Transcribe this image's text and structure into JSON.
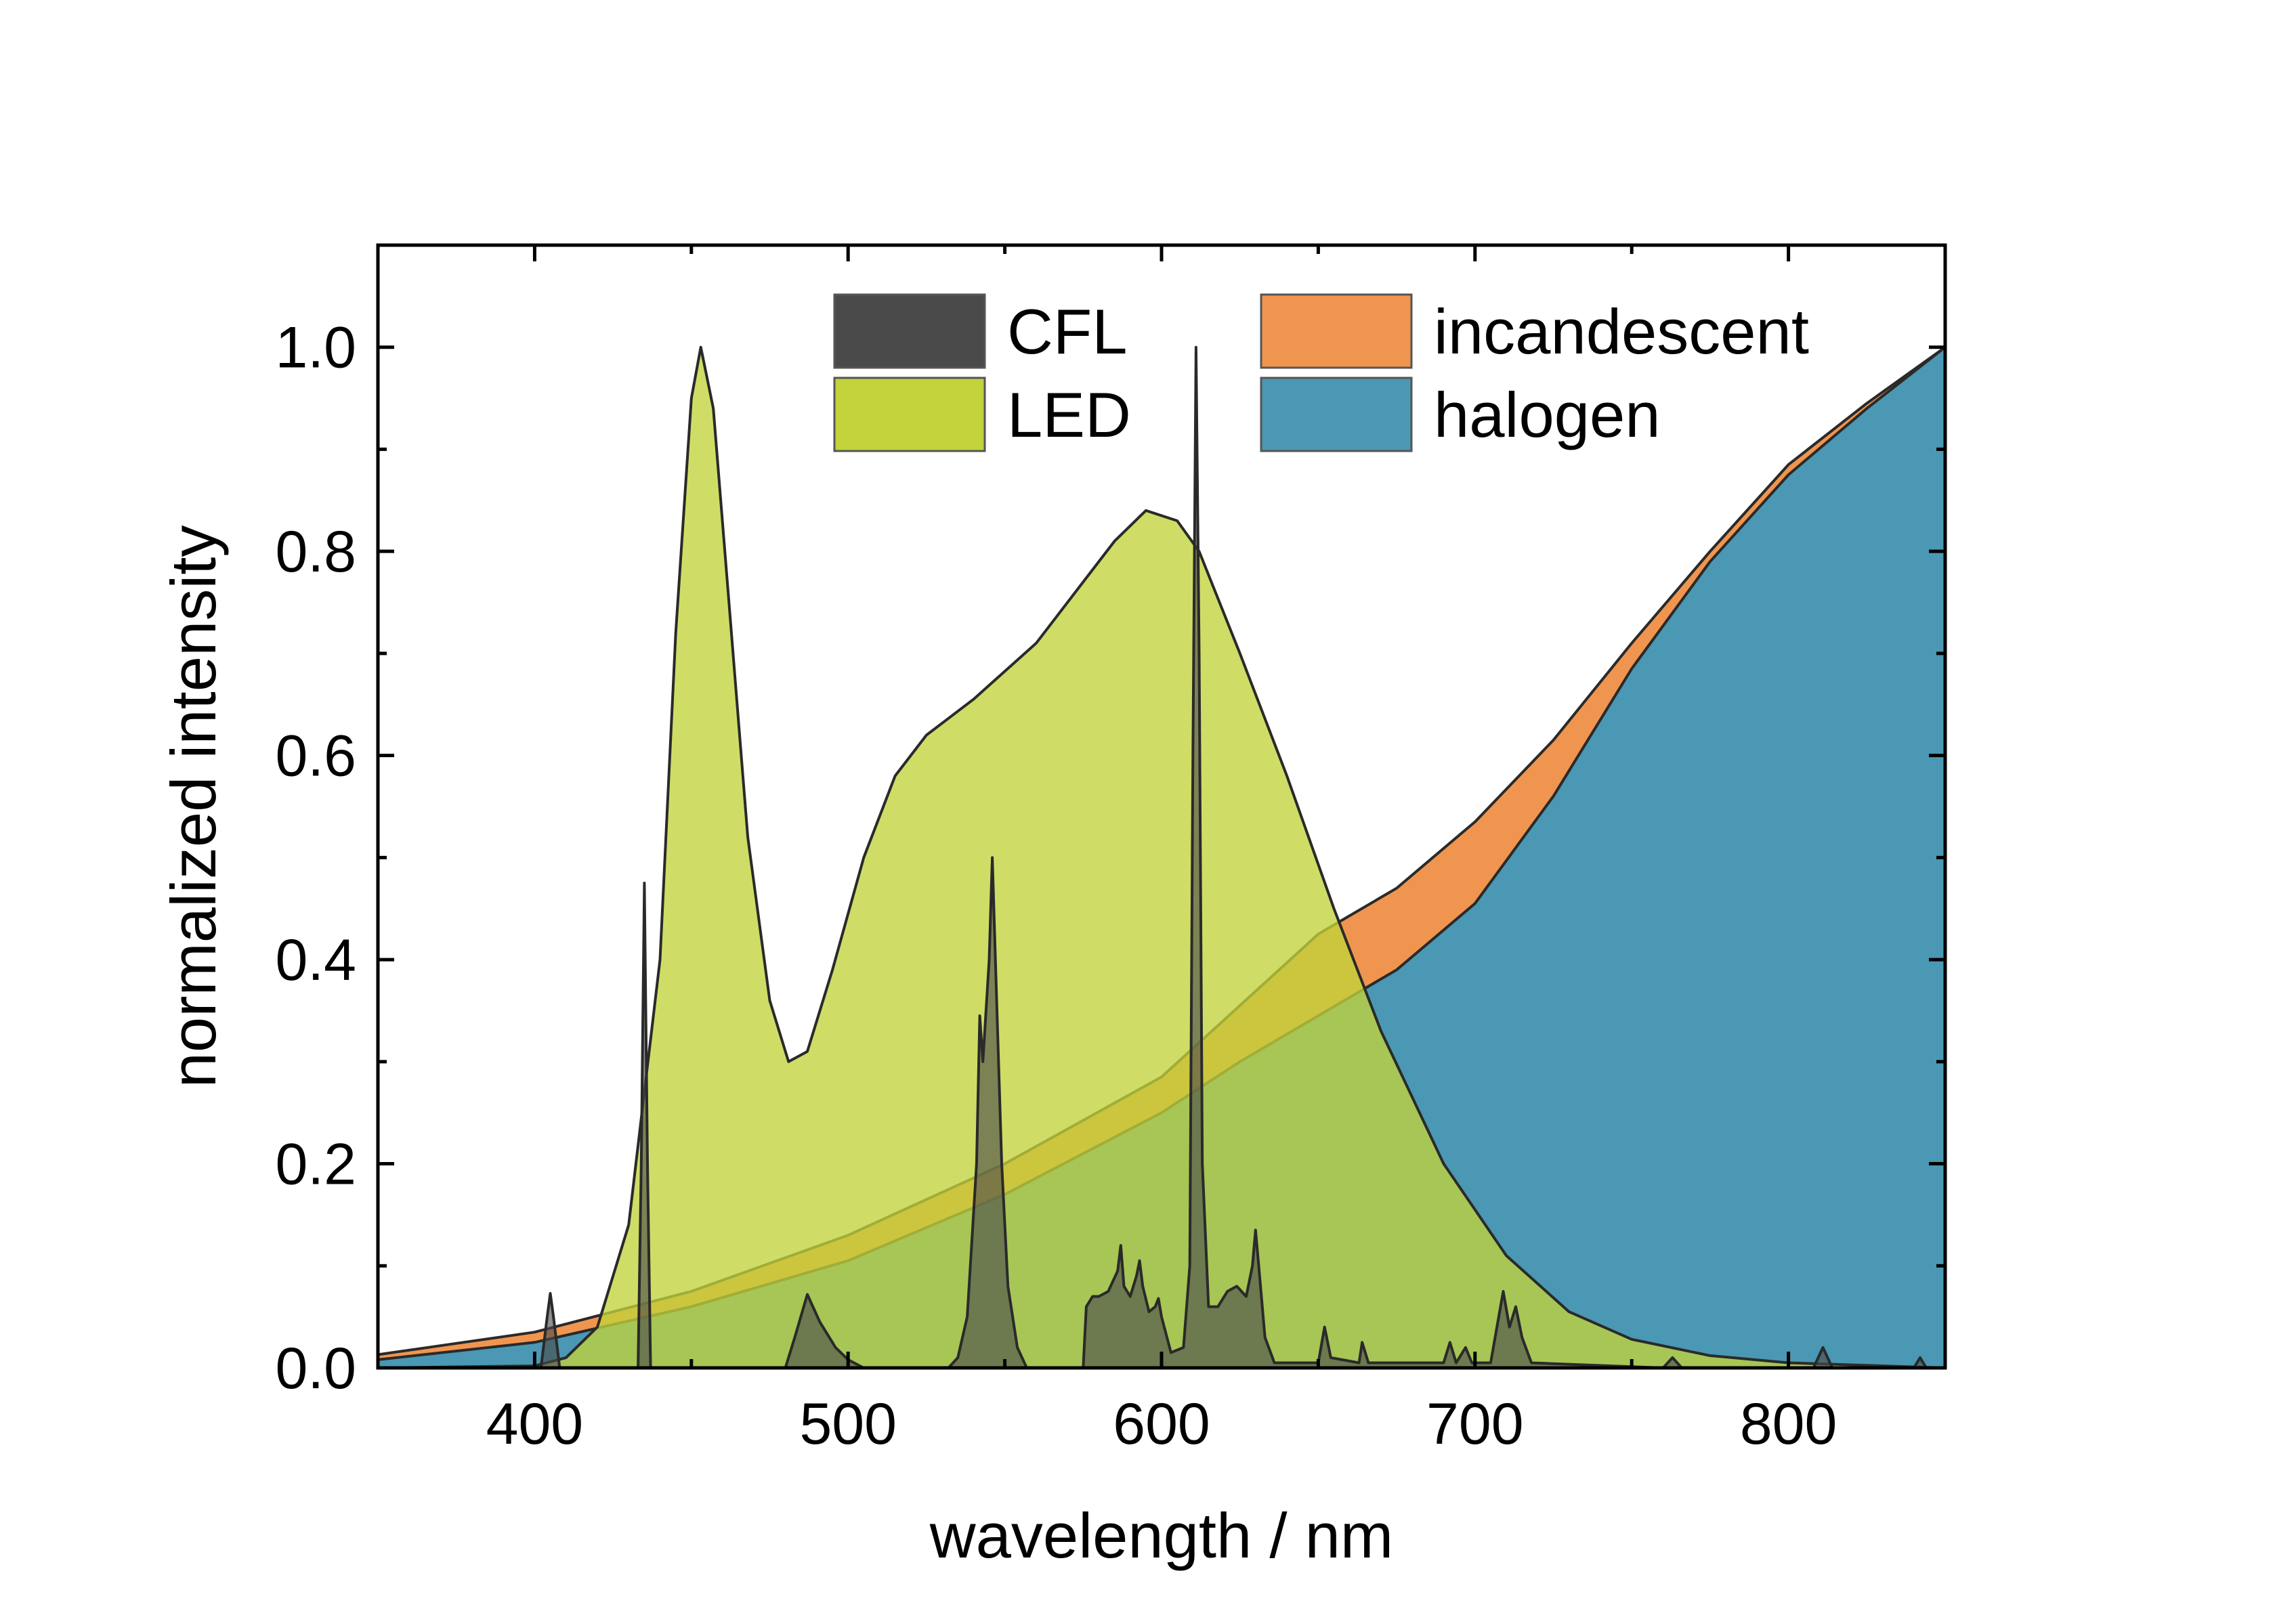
{
  "chart_data": {
    "type": "area",
    "xlabel": "wavelength / nm",
    "ylabel": "normalized intensity",
    "xlim": [
      350,
      850
    ],
    "ylim": [
      0,
      1.1
    ],
    "x_ticks": [
      400,
      500,
      600,
      700,
      800
    ],
    "x_tick_labels": [
      "400",
      "500",
      "600",
      "700",
      "800"
    ],
    "y_ticks": [
      0.0,
      0.2,
      0.4,
      0.6,
      0.8,
      1.0
    ],
    "y_tick_labels": [
      "0.0",
      "0.2",
      "0.4",
      "0.6",
      "0.8",
      "1.0"
    ],
    "grid": false,
    "legend_position": "top",
    "series": [
      {
        "name": "incandescent",
        "color": "#f0954f",
        "points": [
          [
            350,
            0.013
          ],
          [
            400,
            0.035
          ],
          [
            450,
            0.075
          ],
          [
            500,
            0.13
          ],
          [
            550,
            0.2
          ],
          [
            600,
            0.285
          ],
          [
            650,
            0.425
          ],
          [
            675,
            0.47
          ],
          [
            700,
            0.535
          ],
          [
            725,
            0.615
          ],
          [
            750,
            0.71
          ],
          [
            775,
            0.8
          ],
          [
            800,
            0.885
          ],
          [
            825,
            0.945
          ],
          [
            850,
            1.0
          ]
        ]
      },
      {
        "name": "halogen",
        "color": "#4a98b3",
        "points": [
          [
            350,
            0.008
          ],
          [
            400,
            0.025
          ],
          [
            450,
            0.06
          ],
          [
            500,
            0.105
          ],
          [
            550,
            0.17
          ],
          [
            600,
            0.25
          ],
          [
            625,
            0.3
          ],
          [
            650,
            0.345
          ],
          [
            675,
            0.39
          ],
          [
            700,
            0.455
          ],
          [
            725,
            0.56
          ],
          [
            750,
            0.685
          ],
          [
            775,
            0.79
          ],
          [
            800,
            0.875
          ],
          [
            825,
            0.94
          ],
          [
            850,
            1.0
          ]
        ]
      },
      {
        "name": "LED",
        "color": "#c2d33b",
        "points": [
          [
            350,
            0.0
          ],
          [
            400,
            0.002
          ],
          [
            410,
            0.01
          ],
          [
            420,
            0.04
          ],
          [
            430,
            0.14
          ],
          [
            440,
            0.4
          ],
          [
            445,
            0.72
          ],
          [
            450,
            0.95
          ],
          [
            453,
            1.0
          ],
          [
            457,
            0.94
          ],
          [
            462,
            0.75
          ],
          [
            468,
            0.52
          ],
          [
            475,
            0.36
          ],
          [
            481,
            0.3
          ],
          [
            487,
            0.31
          ],
          [
            495,
            0.39
          ],
          [
            505,
            0.5
          ],
          [
            515,
            0.58
          ],
          [
            525,
            0.62
          ],
          [
            540,
            0.655
          ],
          [
            560,
            0.71
          ],
          [
            575,
            0.77
          ],
          [
            585,
            0.81
          ],
          [
            595,
            0.84
          ],
          [
            605,
            0.83
          ],
          [
            612,
            0.8
          ],
          [
            625,
            0.7
          ],
          [
            640,
            0.58
          ],
          [
            655,
            0.45
          ],
          [
            670,
            0.33
          ],
          [
            690,
            0.2
          ],
          [
            710,
            0.11
          ],
          [
            730,
            0.055
          ],
          [
            750,
            0.028
          ],
          [
            775,
            0.012
          ],
          [
            800,
            0.005
          ],
          [
            850,
            0.0
          ]
        ]
      },
      {
        "name": "CFL",
        "color": "#4a4a4a",
        "points": [
          [
            350,
            0.0
          ],
          [
            402,
            0.0
          ],
          [
            404,
            0.05
          ],
          [
            405,
            0.073
          ],
          [
            406,
            0.05
          ],
          [
            408,
            0.0
          ],
          [
            433,
            0.0
          ],
          [
            434,
            0.2
          ],
          [
            435,
            0.475
          ],
          [
            436,
            0.2
          ],
          [
            437,
            0.0
          ],
          [
            480,
            0.0
          ],
          [
            483,
            0.03
          ],
          [
            487,
            0.072
          ],
          [
            491,
            0.045
          ],
          [
            496,
            0.02
          ],
          [
            500,
            0.008
          ],
          [
            505,
            0.0
          ],
          [
            532,
            0.0
          ],
          [
            535,
            0.01
          ],
          [
            538,
            0.05
          ],
          [
            541,
            0.2
          ],
          [
            542,
            0.345
          ],
          [
            543,
            0.3
          ],
          [
            545,
            0.4
          ],
          [
            546,
            0.5
          ],
          [
            547,
            0.4
          ],
          [
            549,
            0.2
          ],
          [
            551,
            0.08
          ],
          [
            554,
            0.02
          ],
          [
            557,
            0.0
          ],
          [
            575,
            0.0
          ],
          [
            576,
            0.06
          ],
          [
            578,
            0.07
          ],
          [
            580,
            0.07
          ],
          [
            583,
            0.075
          ],
          [
            586,
            0.095
          ],
          [
            587,
            0.12
          ],
          [
            588,
            0.08
          ],
          [
            590,
            0.07
          ],
          [
            592,
            0.09
          ],
          [
            593,
            0.105
          ],
          [
            594,
            0.08
          ],
          [
            596,
            0.055
          ],
          [
            598,
            0.06
          ],
          [
            599,
            0.068
          ],
          [
            600,
            0.05
          ],
          [
            603,
            0.015
          ],
          [
            607,
            0.02
          ],
          [
            609,
            0.1
          ],
          [
            610,
            0.6
          ],
          [
            611,
            1.0
          ],
          [
            612,
            0.7
          ],
          [
            613,
            0.2
          ],
          [
            615,
            0.06
          ],
          [
            618,
            0.06
          ],
          [
            621,
            0.075
          ],
          [
            624,
            0.08
          ],
          [
            627,
            0.07
          ],
          [
            629,
            0.1
          ],
          [
            630,
            0.135
          ],
          [
            631,
            0.1
          ],
          [
            633,
            0.03
          ],
          [
            636,
            0.005
          ],
          [
            650,
            0.005
          ],
          [
            652,
            0.04
          ],
          [
            654,
            0.01
          ],
          [
            663,
            0.005
          ],
          [
            664,
            0.025
          ],
          [
            666,
            0.005
          ],
          [
            690,
            0.005
          ],
          [
            692,
            0.025
          ],
          [
            694,
            0.005
          ],
          [
            697,
            0.02
          ],
          [
            699,
            0.005
          ],
          [
            705,
            0.005
          ],
          [
            707,
            0.04
          ],
          [
            709,
            0.075
          ],
          [
            711,
            0.04
          ],
          [
            713,
            0.06
          ],
          [
            715,
            0.03
          ],
          [
            718,
            0.005
          ],
          [
            760,
            0.0
          ],
          [
            763,
            0.01
          ],
          [
            766,
            0.0
          ],
          [
            808,
            0.0
          ],
          [
            811,
            0.02
          ],
          [
            814,
            0.0
          ],
          [
            840,
            0.0
          ],
          [
            842,
            0.01
          ],
          [
            844,
            0.0
          ],
          [
            850,
            0.0
          ]
        ]
      }
    ],
    "legend": [
      {
        "label": "CFL",
        "color": "#4a4a4a"
      },
      {
        "label": "incandescent",
        "color": "#f0954f"
      },
      {
        "label": "LED",
        "color": "#c2d33b"
      },
      {
        "label": "halogen",
        "color": "#4a98b3"
      }
    ]
  }
}
